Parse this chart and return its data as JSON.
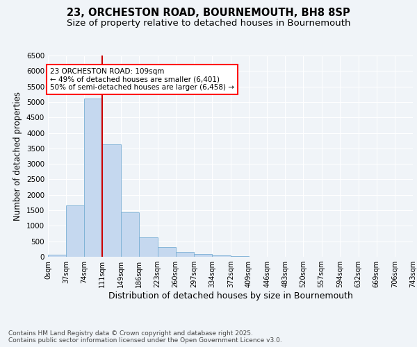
{
  "title_line1": "23, ORCHESTON ROAD, BOURNEMOUTH, BH8 8SP",
  "title_line2": "Size of property relative to detached houses in Bournemouth",
  "xlabel": "Distribution of detached houses by size in Bournemouth",
  "ylabel": "Number of detached properties",
  "bar_color": "#c5d8ef",
  "bar_edge_color": "#7aafd4",
  "vline_x": 111,
  "vline_color": "#cc0000",
  "annotation_text": "23 ORCHESTON ROAD: 109sqm\n← 49% of detached houses are smaller (6,401)\n50% of semi-detached houses are larger (6,458) →",
  "bin_edges": [
    0,
    37,
    74,
    111,
    149,
    186,
    223,
    260,
    297,
    334,
    372,
    409,
    446,
    483,
    520,
    557,
    594,
    632,
    669,
    706,
    743
  ],
  "bar_values": [
    60,
    1650,
    5110,
    3630,
    1430,
    620,
    320,
    155,
    100,
    50,
    30,
    5,
    0,
    0,
    0,
    0,
    0,
    0,
    0,
    0
  ],
  "ylim": [
    0,
    6500
  ],
  "yticks": [
    0,
    500,
    1000,
    1500,
    2000,
    2500,
    3000,
    3500,
    4000,
    4500,
    5000,
    5500,
    6000,
    6500
  ],
  "tick_labels": [
    "0sqm",
    "37sqm",
    "74sqm",
    "111sqm",
    "149sqm",
    "186sqm",
    "223sqm",
    "260sqm",
    "297sqm",
    "334sqm",
    "372sqm",
    "409sqm",
    "446sqm",
    "483sqm",
    "520sqm",
    "557sqm",
    "594sqm",
    "632sqm",
    "669sqm",
    "706sqm",
    "743sqm"
  ],
  "bg_color": "#f0f4f8",
  "plot_bg_color": "#f0f4f8",
  "footer_text": "Contains HM Land Registry data © Crown copyright and database right 2025.\nContains public sector information licensed under the Open Government Licence v3.0.",
  "title_fontsize": 10.5,
  "subtitle_fontsize": 9.5,
  "xlabel_fontsize": 9,
  "ylabel_fontsize": 8.5,
  "tick_fontsize": 7,
  "annot_fontsize": 7.5,
  "footer_fontsize": 6.5
}
